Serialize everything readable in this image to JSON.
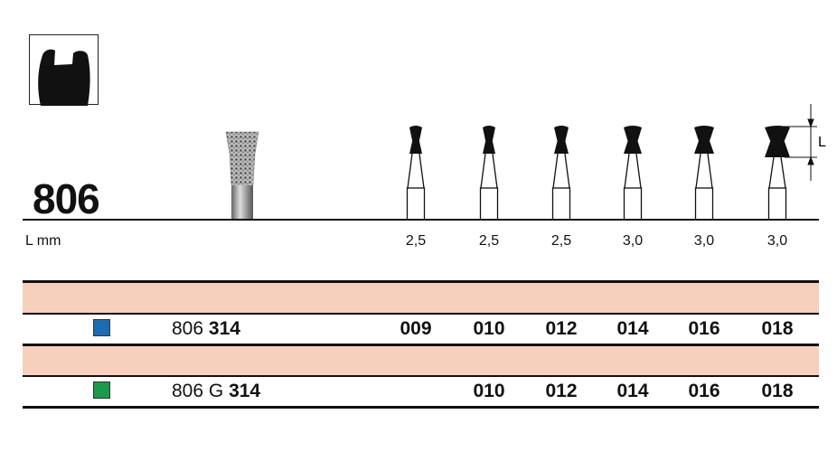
{
  "product": {
    "number": "806",
    "shape_icon": "inverted-cone-burr-shape-icon",
    "length_label": "L mm",
    "dimension_label": "L",
    "lengths": [
      "2,5",
      "2,5",
      "2,5",
      "3,0",
      "3,0",
      "3,0"
    ]
  },
  "rows": [
    {
      "color": "#1b6db3",
      "code_prefix": "806",
      "code_shank": "314",
      "sizes": [
        "009",
        "010",
        "012",
        "014",
        "016",
        "018"
      ]
    },
    {
      "color": "#1a9a4a",
      "code_prefix": "806 G",
      "code_shank": "314",
      "sizes": [
        "",
        "010",
        "012",
        "014",
        "016",
        "018"
      ]
    }
  ],
  "colors": {
    "band": "#f6cfbd"
  }
}
